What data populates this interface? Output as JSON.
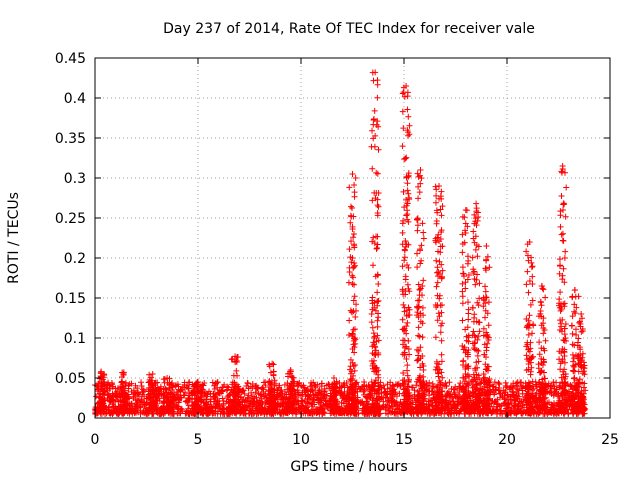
{
  "chart_data": {
    "type": "scatter",
    "title": "Day 237 of 2014, Rate Of TEC Index for receiver vale",
    "xlabel": "GPS time / hours",
    "ylabel": "ROTI / TECUs",
    "xlim": [
      0,
      25
    ],
    "ylim": [
      0,
      0.45
    ],
    "xticks": [
      0,
      5,
      10,
      15,
      20,
      25
    ],
    "xtick_labels": [
      "0",
      "5",
      "10",
      "15",
      "20",
      "25"
    ],
    "yticks": [
      0,
      0.05,
      0.1,
      0.15,
      0.2,
      0.25,
      0.3,
      0.35,
      0.4,
      0.45
    ],
    "ytick_labels": [
      "0",
      "0.05",
      "0.1",
      "0.15",
      "0.2",
      "0.25",
      "0.3",
      "0.35",
      "0.4",
      "0.45"
    ],
    "grid": true,
    "marker": "+",
    "color": "#ff0000",
    "series": [
      {
        "name": "ROTI",
        "description_points": "dense background of points between ~0.005 and ~0.05 TECU/s from 0 to ~23.8 h, with spikes listed below",
        "background_band": {
          "x_range": [
            0,
            23.8
          ],
          "y_range": [
            0.005,
            0.045
          ]
        },
        "spikes": [
          {
            "x": 0.3,
            "y_max": 0.058
          },
          {
            "x": 1.4,
            "y_max": 0.057
          },
          {
            "x": 2.8,
            "y_max": 0.055
          },
          {
            "x": 3.5,
            "y_max": 0.05
          },
          {
            "x": 5.0,
            "y_max": 0.045
          },
          {
            "x": 6.8,
            "y_max": 0.077
          },
          {
            "x": 8.6,
            "y_max": 0.068
          },
          {
            "x": 9.5,
            "y_max": 0.06
          },
          {
            "x": 11.6,
            "y_max": 0.05
          },
          {
            "x": 12.5,
            "y_max": 0.305
          },
          {
            "x": 13.6,
            "y_max": 0.432
          },
          {
            "x": 15.1,
            "y_max": 0.415
          },
          {
            "x": 15.8,
            "y_max": 0.31
          },
          {
            "x": 16.7,
            "y_max": 0.29
          },
          {
            "x": 18.0,
            "y_max": 0.26
          },
          {
            "x": 18.5,
            "y_max": 0.268
          },
          {
            "x": 19.0,
            "y_max": 0.215
          },
          {
            "x": 21.1,
            "y_max": 0.22
          },
          {
            "x": 21.7,
            "y_max": 0.165
          },
          {
            "x": 22.7,
            "y_max": 0.315
          },
          {
            "x": 23.3,
            "y_max": 0.16
          },
          {
            "x": 23.6,
            "y_max": 0.13
          }
        ]
      }
    ]
  }
}
